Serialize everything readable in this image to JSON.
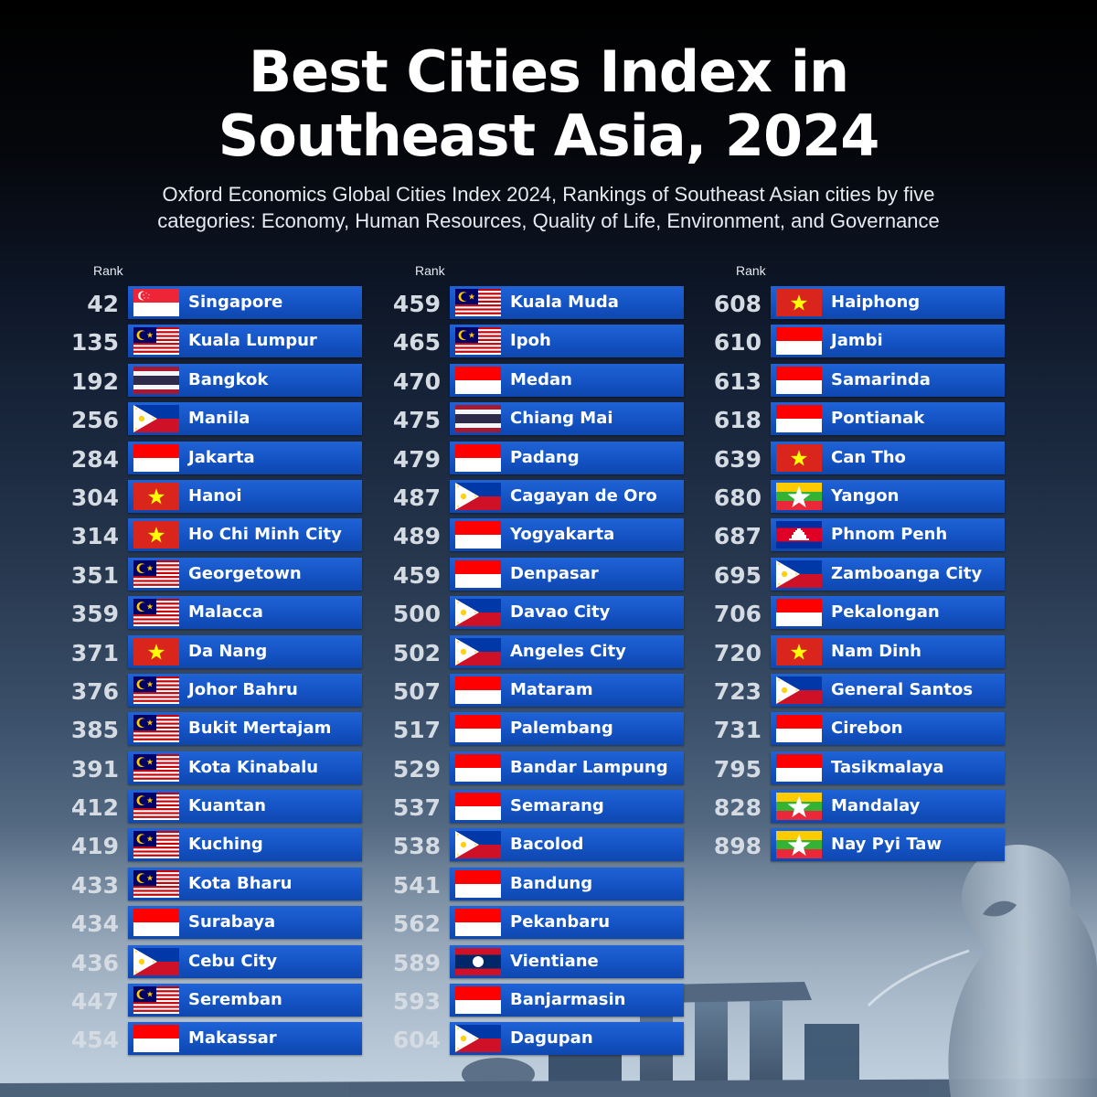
{
  "title_line1": "Best Cities Index in",
  "title_line2": "Southeast Asia, 2024",
  "subtitle_line1": "Oxford Economics Global Cities Index 2024, Rankings of Southeast Asian cities by five",
  "subtitle_line2": "categories: Economy, Human Resources, Quality of Life, Environment, and Governance",
  "rank_header": "Rank",
  "columns": [
    [
      {
        "rank": "42",
        "city": "Singapore",
        "flag": "singapore-flag-icon"
      },
      {
        "rank": "135",
        "city": "Kuala Lumpur",
        "flag": "malaysia-flag-icon"
      },
      {
        "rank": "192",
        "city": "Bangkok",
        "flag": "thailand-flag-icon"
      },
      {
        "rank": "256",
        "city": "Manila",
        "flag": "philippines-flag-icon"
      },
      {
        "rank": "284",
        "city": "Jakarta",
        "flag": "indonesia-flag-icon"
      },
      {
        "rank": "304",
        "city": "Hanoi",
        "flag": "vietnam-flag-icon"
      },
      {
        "rank": "314",
        "city": "Ho Chi Minh City",
        "flag": "vietnam-flag-icon"
      },
      {
        "rank": "351",
        "city": "Georgetown",
        "flag": "malaysia-flag-icon"
      },
      {
        "rank": "359",
        "city": "Malacca",
        "flag": "malaysia-flag-icon"
      },
      {
        "rank": "371",
        "city": "Da Nang",
        "flag": "vietnam-flag-icon"
      },
      {
        "rank": "376",
        "city": "Johor Bahru",
        "flag": "malaysia-flag-icon"
      },
      {
        "rank": "385",
        "city": "Bukit Mertajam",
        "flag": "malaysia-flag-icon"
      },
      {
        "rank": "391",
        "city": "Kota Kinabalu",
        "flag": "malaysia-flag-icon"
      },
      {
        "rank": "412",
        "city": "Kuantan",
        "flag": "malaysia-flag-icon"
      },
      {
        "rank": "419",
        "city": "Kuching",
        "flag": "malaysia-flag-icon"
      },
      {
        "rank": "433",
        "city": "Kota Bharu",
        "flag": "malaysia-flag-icon"
      },
      {
        "rank": "434",
        "city": "Surabaya",
        "flag": "indonesia-flag-icon"
      },
      {
        "rank": "436",
        "city": "Cebu City",
        "flag": "philippines-flag-icon"
      },
      {
        "rank": "447",
        "city": "Seremban",
        "flag": "malaysia-flag-icon"
      },
      {
        "rank": "454",
        "city": "Makassar",
        "flag": "indonesia-flag-icon"
      }
    ],
    [
      {
        "rank": "459",
        "city": "Kuala Muda",
        "flag": "malaysia-flag-icon"
      },
      {
        "rank": "465",
        "city": "Ipoh",
        "flag": "malaysia-flag-icon"
      },
      {
        "rank": "470",
        "city": "Medan",
        "flag": "indonesia-flag-icon"
      },
      {
        "rank": "475",
        "city": "Chiang Mai",
        "flag": "thailand-flag-icon"
      },
      {
        "rank": "479",
        "city": "Padang",
        "flag": "indonesia-flag-icon"
      },
      {
        "rank": "487",
        "city": "Cagayan de Oro",
        "flag": "philippines-flag-icon"
      },
      {
        "rank": "489",
        "city": "Yogyakarta",
        "flag": "indonesia-flag-icon"
      },
      {
        "rank": "459",
        "city": "Denpasar",
        "flag": "indonesia-flag-icon"
      },
      {
        "rank": "500",
        "city": "Davao City",
        "flag": "philippines-flag-icon"
      },
      {
        "rank": "502",
        "city": "Angeles City",
        "flag": "philippines-flag-icon"
      },
      {
        "rank": "507",
        "city": "Mataram",
        "flag": "indonesia-flag-icon"
      },
      {
        "rank": "517",
        "city": "Palembang",
        "flag": "indonesia-flag-icon"
      },
      {
        "rank": "529",
        "city": "Bandar Lampung",
        "flag": "indonesia-flag-icon"
      },
      {
        "rank": "537",
        "city": "Semarang",
        "flag": "indonesia-flag-icon"
      },
      {
        "rank": "538",
        "city": "Bacolod",
        "flag": "philippines-flag-icon"
      },
      {
        "rank": "541",
        "city": "Bandung",
        "flag": "indonesia-flag-icon"
      },
      {
        "rank": "562",
        "city": "Pekanbaru",
        "flag": "indonesia-flag-icon"
      },
      {
        "rank": "589",
        "city": "Vientiane",
        "flag": "laos-flag-icon"
      },
      {
        "rank": "593",
        "city": "Banjarmasin",
        "flag": "indonesia-flag-icon"
      },
      {
        "rank": "604",
        "city": "Dagupan",
        "flag": "philippines-flag-icon"
      }
    ],
    [
      {
        "rank": "608",
        "city": "Haiphong",
        "flag": "vietnam-flag-icon"
      },
      {
        "rank": "610",
        "city": "Jambi",
        "flag": "indonesia-flag-icon"
      },
      {
        "rank": "613",
        "city": "Samarinda",
        "flag": "indonesia-flag-icon"
      },
      {
        "rank": "618",
        "city": "Pontianak",
        "flag": "indonesia-flag-icon"
      },
      {
        "rank": "639",
        "city": "Can Tho",
        "flag": "vietnam-flag-icon"
      },
      {
        "rank": "680",
        "city": "Yangon",
        "flag": "myanmar-flag-icon"
      },
      {
        "rank": "687",
        "city": "Phnom Penh",
        "flag": "cambodia-flag-icon"
      },
      {
        "rank": "695",
        "city": "Zamboanga City",
        "flag": "philippines-flag-icon"
      },
      {
        "rank": "706",
        "city": "Pekalongan",
        "flag": "indonesia-flag-icon"
      },
      {
        "rank": "720",
        "city": "Nam Dinh",
        "flag": "vietnam-flag-icon"
      },
      {
        "rank": "723",
        "city": "General Santos",
        "flag": "philippines-flag-icon"
      },
      {
        "rank": "731",
        "city": "Cirebon",
        "flag": "indonesia-flag-icon"
      },
      {
        "rank": "795",
        "city": "Tasikmalaya",
        "flag": "indonesia-flag-icon"
      },
      {
        "rank": "828",
        "city": "Mandalay",
        "flag": "myanmar-flag-icon"
      },
      {
        "rank": "898",
        "city": "Nay Pyi Taw",
        "flag": "myanmar-flag-icon"
      }
    ]
  ]
}
